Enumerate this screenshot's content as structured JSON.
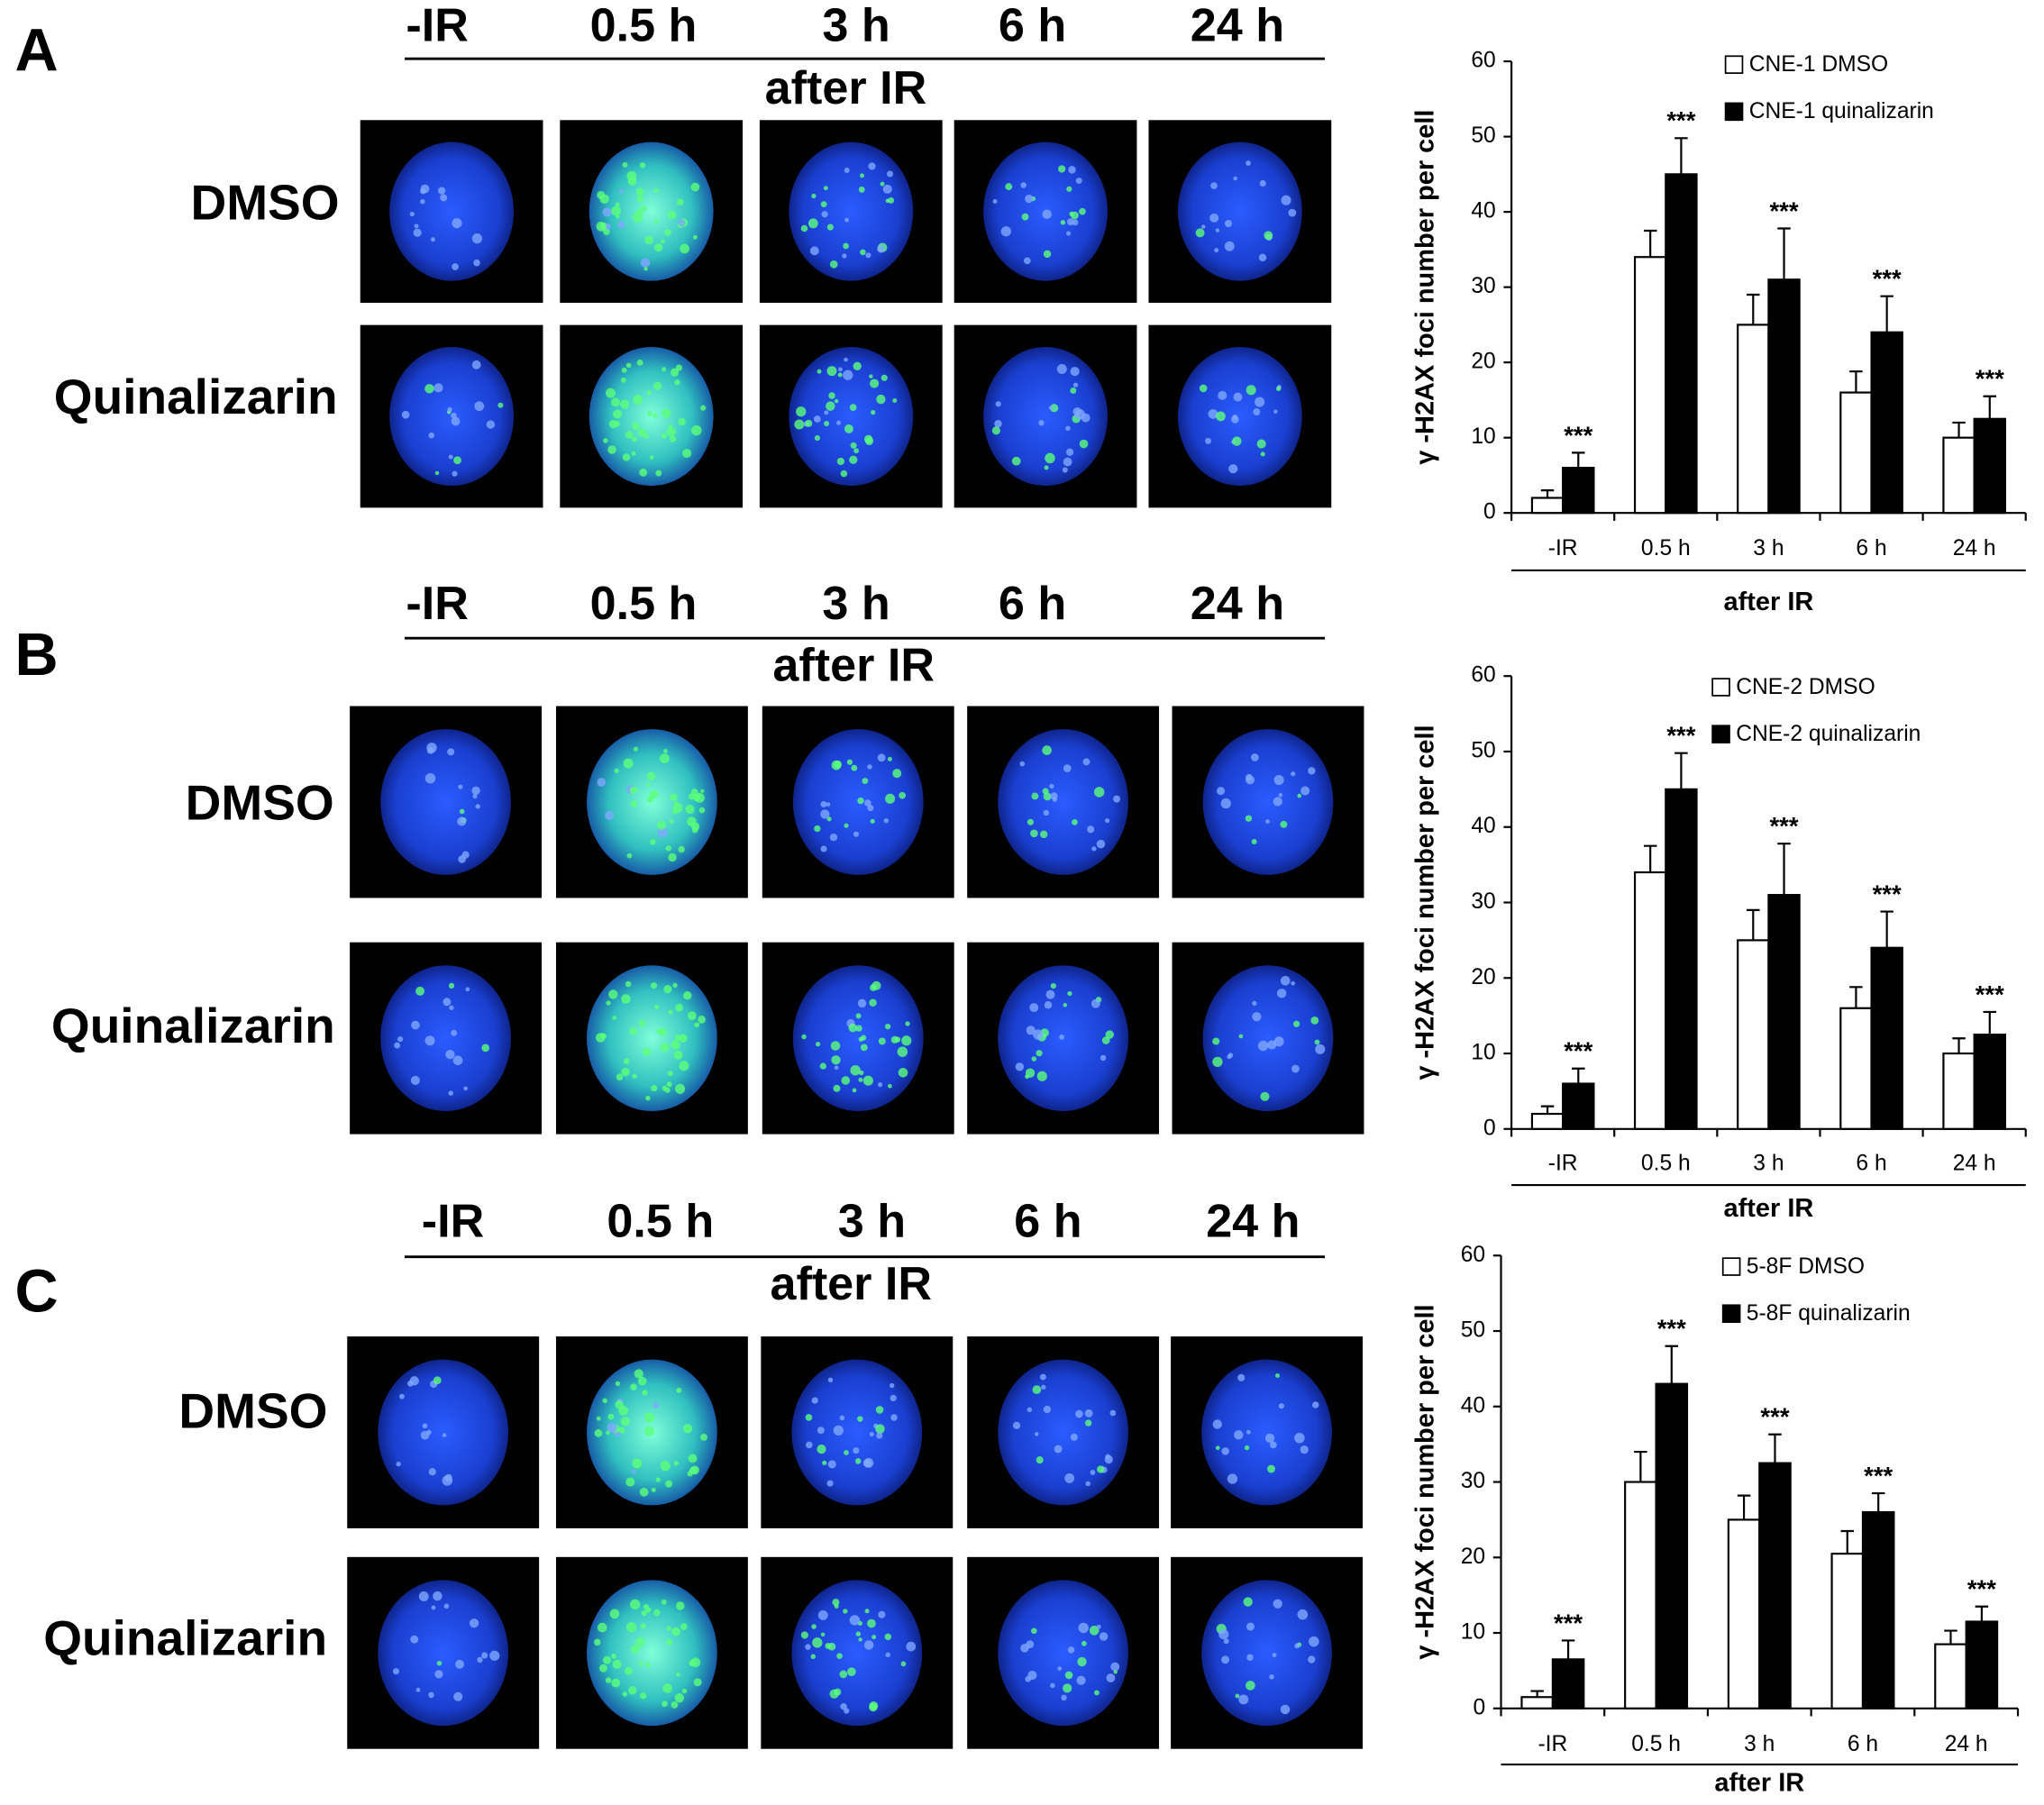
{
  "panels": [
    {
      "letter": "A",
      "timepoints": [
        "-IR",
        "0.5 h",
        "3 h",
        "6 h",
        "24 h"
      ],
      "after_ir": "after IR",
      "rows": [
        "DMSO",
        "Quinalizarin"
      ]
    },
    {
      "letter": "B",
      "timepoints": [
        "-IR",
        "0.5 h",
        "3 h",
        "6 h",
        "24 h"
      ],
      "after_ir": "after IR",
      "rows": [
        "DMSO",
        "Quinalizarin"
      ]
    },
    {
      "letter": "C",
      "timepoints": [
        "-IR",
        "0.5 h",
        "3 h",
        "6 h",
        "24 h"
      ],
      "after_ir": "after IR",
      "rows": [
        "DMSO",
        "Quinalizarin"
      ]
    }
  ],
  "chart_data": [
    {
      "type": "bar",
      "ylabel": "γ -H2AX foci number per cell",
      "xlabel": "after IR",
      "categories": [
        "-IR",
        "0.5 h",
        "3 h",
        "6 h",
        "24 h"
      ],
      "series": [
        {
          "name": "CNE-1 DMSO",
          "color": "#ffffff",
          "values": [
            2,
            34,
            25,
            16,
            10
          ],
          "errors": [
            1,
            3.5,
            4,
            2.8,
            2
          ]
        },
        {
          "name": "CNE-1 quinalizarin",
          "color": "#000000",
          "values": [
            6,
            45,
            31,
            24,
            12.5
          ],
          "errors": [
            2,
            4.8,
            6.8,
            4.8,
            3
          ]
        }
      ],
      "annotations": [
        "***",
        "***",
        "***",
        "***",
        "***"
      ],
      "ylim": [
        0,
        60
      ],
      "yticks": [
        0,
        10,
        20,
        30,
        40,
        50,
        60
      ],
      "grid": false,
      "legend": "top-right"
    },
    {
      "type": "bar",
      "ylabel": "γ -H2AX foci number per cell",
      "xlabel": "after IR",
      "categories": [
        "-IR",
        "0.5 h",
        "3 h",
        "6 h",
        "24 h"
      ],
      "series": [
        {
          "name": "CNE-2  DMSO",
          "color": "#ffffff",
          "values": [
            2,
            34,
            25,
            16,
            10
          ],
          "errors": [
            1,
            3.5,
            4,
            2.8,
            2
          ]
        },
        {
          "name": "CNE-2  quinalizarin",
          "color": "#000000",
          "values": [
            6,
            45,
            31,
            24,
            12.5
          ],
          "errors": [
            2,
            4.8,
            6.8,
            4.8,
            3
          ]
        }
      ],
      "annotations": [
        "***",
        "***",
        "***",
        "***",
        "***"
      ],
      "ylim": [
        0,
        60
      ],
      "yticks": [
        0,
        10,
        20,
        30,
        40,
        50,
        60
      ],
      "grid": false,
      "legend": "top-right"
    },
    {
      "type": "bar",
      "ylabel": "γ -H2AX foci number per cell",
      "xlabel": "after IR",
      "categories": [
        "-IR",
        "0.5 h",
        "3 h",
        "6 h",
        "24 h"
      ],
      "series": [
        {
          "name": "5-8F DMSO",
          "color": "#ffffff",
          "values": [
            1.5,
            30,
            25,
            20.5,
            8.5
          ],
          "errors": [
            0.8,
            4,
            3.2,
            3,
            1.8
          ]
        },
        {
          "name": "5-8F quinalizarin",
          "color": "#000000",
          "values": [
            6.5,
            43,
            32.5,
            26,
            11.5
          ],
          "errors": [
            2.5,
            5,
            3.8,
            2.5,
            2
          ]
        }
      ],
      "annotations": [
        "***",
        "***",
        "***",
        "***",
        "***"
      ],
      "ylim": [
        0,
        60
      ],
      "yticks": [
        0,
        10,
        20,
        30,
        40,
        50,
        60
      ],
      "grid": false,
      "legend": "top-right"
    }
  ]
}
